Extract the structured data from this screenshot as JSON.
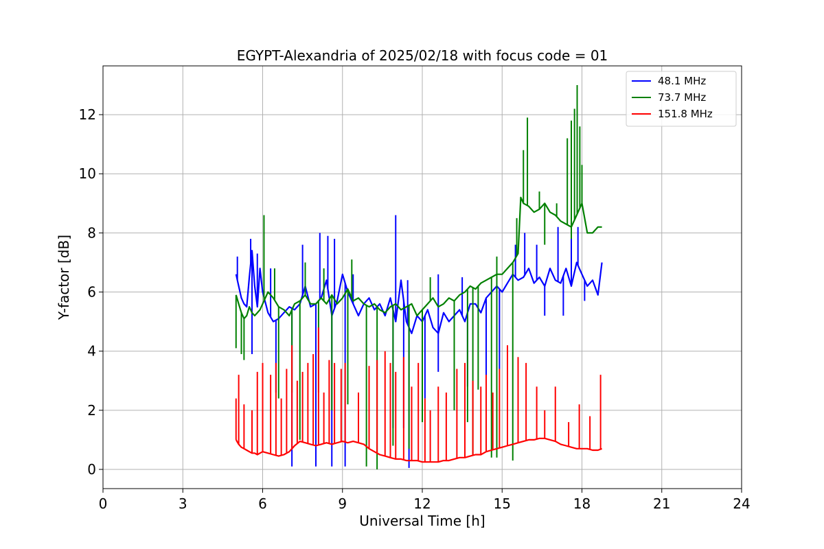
{
  "chart_data": {
    "type": "line",
    "title": "EGYPT-Alexandria of 2025/02/18 with focus code = 01",
    "xlabel": "Universal Time [h]",
    "ylabel": "Y-factor [dB]",
    "xlim": [
      0,
      24
    ],
    "ylim": [
      -0.65,
      13.65
    ],
    "xticks": [
      0,
      3,
      6,
      9,
      12,
      15,
      18,
      21,
      24
    ],
    "yticks": [
      0,
      2,
      4,
      6,
      8,
      10,
      12
    ],
    "grid": true,
    "legend_position": "top-right",
    "series": [
      {
        "name": " 48.1 MHz",
        "color": "#0000ff",
        "x": [
          5.0,
          5.1,
          5.2,
          5.3,
          5.4,
          5.5,
          5.6,
          5.7,
          5.8,
          5.9,
          6.0,
          6.2,
          6.4,
          6.6,
          6.8,
          7.0,
          7.2,
          7.4,
          7.6,
          7.8,
          8.0,
          8.2,
          8.4,
          8.6,
          8.8,
          9.0,
          9.2,
          9.4,
          9.6,
          9.8,
          10.0,
          10.2,
          10.4,
          10.6,
          10.8,
          11.0,
          11.2,
          11.4,
          11.6,
          11.8,
          12.0,
          12.2,
          12.4,
          12.6,
          12.8,
          13.0,
          13.2,
          13.4,
          13.6,
          13.8,
          14.0,
          14.2,
          14.4,
          14.6,
          14.8,
          15.0,
          15.2,
          15.4,
          15.6,
          15.8,
          16.0,
          16.2,
          16.4,
          16.6,
          16.8,
          17.0,
          17.2,
          17.4,
          17.6,
          17.8,
          18.0,
          18.2,
          18.4,
          18.6,
          18.75
        ],
        "y": [
          6.6,
          6.2,
          5.8,
          5.6,
          5.5,
          6.5,
          7.4,
          6.2,
          5.5,
          6.8,
          6.0,
          5.3,
          5.0,
          5.1,
          5.3,
          5.5,
          5.4,
          5.6,
          6.2,
          5.5,
          5.6,
          5.8,
          6.4,
          5.2,
          5.7,
          6.6,
          6.0,
          5.6,
          5.2,
          5.6,
          5.8,
          5.4,
          5.6,
          5.2,
          5.8,
          5.0,
          6.4,
          5.0,
          4.6,
          5.2,
          5.0,
          5.4,
          4.8,
          4.6,
          5.3,
          5.0,
          5.2,
          5.4,
          5.0,
          5.6,
          5.6,
          5.3,
          5.8,
          6.0,
          6.2,
          6.0,
          6.3,
          6.6,
          6.4,
          6.5,
          6.8,
          6.3,
          6.5,
          6.2,
          6.8,
          6.4,
          6.3,
          6.8,
          6.2,
          7.0,
          6.6,
          6.2,
          6.4,
          5.9,
          7.0
        ],
        "spikes": [
          {
            "x": 5.05,
            "y": 7.2
          },
          {
            "x": 5.55,
            "y": 7.8
          },
          {
            "x": 5.8,
            "y": 7.3
          },
          {
            "x": 6.3,
            "y": 6.8
          },
          {
            "x": 7.5,
            "y": 7.6
          },
          {
            "x": 8.15,
            "y": 8.0
          },
          {
            "x": 8.45,
            "y": 7.9
          },
          {
            "x": 8.7,
            "y": 7.8
          },
          {
            "x": 9.4,
            "y": 6.6
          },
          {
            "x": 11.0,
            "y": 8.6
          },
          {
            "x": 11.45,
            "y": 6.4
          },
          {
            "x": 12.6,
            "y": 6.6
          },
          {
            "x": 13.5,
            "y": 6.5
          },
          {
            "x": 15.5,
            "y": 7.6
          },
          {
            "x": 15.85,
            "y": 8.0
          },
          {
            "x": 16.3,
            "y": 7.6
          },
          {
            "x": 17.1,
            "y": 8.2
          },
          {
            "x": 17.6,
            "y": 7.8
          },
          {
            "x": 17.85,
            "y": 8.2
          }
        ],
        "dips": [
          {
            "x": 5.6,
            "y": 3.9
          },
          {
            "x": 6.5,
            "y": 2.6
          },
          {
            "x": 7.1,
            "y": 0.1
          },
          {
            "x": 8.0,
            "y": 0.1
          },
          {
            "x": 8.6,
            "y": 0.1
          },
          {
            "x": 9.1,
            "y": 0.1
          },
          {
            "x": 10.9,
            "y": 1.4
          },
          {
            "x": 11.3,
            "y": 1.4
          },
          {
            "x": 11.5,
            "y": 0.05
          },
          {
            "x": 12.1,
            "y": 2.4
          },
          {
            "x": 12.6,
            "y": 3.3
          },
          {
            "x": 13.7,
            "y": 2.8
          },
          {
            "x": 14.4,
            "y": 1.4
          },
          {
            "x": 14.9,
            "y": 3.4
          },
          {
            "x": 16.6,
            "y": 5.2
          },
          {
            "x": 17.3,
            "y": 5.2
          },
          {
            "x": 18.1,
            "y": 5.7
          }
        ]
      },
      {
        "name": " 73.7 MHz",
        "color": "#008000",
        "x": [
          5.0,
          5.1,
          5.2,
          5.3,
          5.4,
          5.5,
          5.6,
          5.7,
          5.8,
          5.9,
          6.0,
          6.2,
          6.4,
          6.6,
          6.8,
          7.0,
          7.2,
          7.4,
          7.6,
          7.8,
          8.0,
          8.2,
          8.4,
          8.6,
          8.8,
          9.0,
          9.2,
          9.4,
          9.6,
          9.8,
          10.0,
          10.2,
          10.4,
          10.6,
          10.8,
          11.0,
          11.2,
          11.4,
          11.6,
          11.8,
          12.0,
          12.2,
          12.4,
          12.6,
          12.8,
          13.0,
          13.2,
          13.4,
          13.6,
          13.8,
          14.0,
          14.2,
          14.4,
          14.6,
          14.8,
          15.0,
          15.2,
          15.4,
          15.6,
          15.7,
          15.8,
          16.0,
          16.2,
          16.4,
          16.6,
          16.8,
          17.0,
          17.2,
          17.4,
          17.6,
          17.8,
          18.0,
          18.2,
          18.4,
          18.6,
          18.75
        ],
        "y": [
          5.9,
          5.6,
          5.3,
          5.1,
          5.2,
          5.5,
          5.3,
          5.2,
          5.3,
          5.4,
          5.6,
          6.0,
          5.8,
          5.5,
          5.4,
          5.2,
          5.6,
          5.7,
          5.9,
          5.6,
          5.6,
          5.8,
          5.6,
          5.9,
          5.6,
          5.8,
          6.1,
          5.7,
          5.8,
          5.6,
          5.5,
          5.6,
          5.4,
          5.3,
          5.5,
          5.6,
          5.4,
          5.5,
          5.6,
          5.2,
          5.4,
          5.6,
          5.8,
          5.5,
          5.6,
          5.8,
          5.7,
          5.9,
          6.0,
          6.2,
          6.1,
          6.3,
          6.4,
          6.5,
          6.6,
          6.6,
          6.8,
          7.0,
          7.3,
          9.2,
          9.0,
          8.9,
          8.7,
          8.8,
          9.0,
          8.7,
          8.6,
          8.4,
          8.3,
          8.2,
          8.6,
          9.0,
          8.0,
          8.0,
          8.2,
          8.2
        ],
        "spikes": [
          {
            "x": 6.05,
            "y": 8.6
          },
          {
            "x": 6.45,
            "y": 6.8
          },
          {
            "x": 7.6,
            "y": 7.0
          },
          {
            "x": 8.3,
            "y": 6.8
          },
          {
            "x": 9.35,
            "y": 7.1
          },
          {
            "x": 12.3,
            "y": 6.5
          },
          {
            "x": 14.8,
            "y": 7.2
          },
          {
            "x": 15.55,
            "y": 8.5
          },
          {
            "x": 15.8,
            "y": 10.8
          },
          {
            "x": 15.95,
            "y": 11.9
          },
          {
            "x": 16.4,
            "y": 9.4
          },
          {
            "x": 17.05,
            "y": 9.0
          },
          {
            "x": 17.45,
            "y": 11.2
          },
          {
            "x": 17.6,
            "y": 11.8
          },
          {
            "x": 17.72,
            "y": 12.2
          },
          {
            "x": 17.82,
            "y": 13.0
          },
          {
            "x": 17.92,
            "y": 11.6
          },
          {
            "x": 18.0,
            "y": 10.3
          }
        ],
        "dips": [
          {
            "x": 5.0,
            "y": 4.1
          },
          {
            "x": 5.2,
            "y": 3.9
          },
          {
            "x": 5.3,
            "y": 3.7
          },
          {
            "x": 6.6,
            "y": 2.4
          },
          {
            "x": 7.1,
            "y": 2.6
          },
          {
            "x": 7.4,
            "y": 1.0
          },
          {
            "x": 8.1,
            "y": 2.6
          },
          {
            "x": 8.6,
            "y": 2.0
          },
          {
            "x": 9.2,
            "y": 2.2
          },
          {
            "x": 9.9,
            "y": 0.1
          },
          {
            "x": 10.3,
            "y": 0.0
          },
          {
            "x": 10.9,
            "y": 0.8
          },
          {
            "x": 11.5,
            "y": 0.7
          },
          {
            "x": 12.0,
            "y": 1.6
          },
          {
            "x": 13.2,
            "y": 2.0
          },
          {
            "x": 13.7,
            "y": 1.6
          },
          {
            "x": 13.9,
            "y": 0.5
          },
          {
            "x": 14.1,
            "y": 2.7
          },
          {
            "x": 14.6,
            "y": 0.4
          },
          {
            "x": 14.8,
            "y": 0.4
          },
          {
            "x": 15.4,
            "y": 0.3
          },
          {
            "x": 16.6,
            "y": 7.6
          },
          {
            "x": 17.6,
            "y": 7.8
          }
        ]
      },
      {
        "name": " 151.8 MHz",
        "color": "#ff0000",
        "x": [
          5.0,
          5.1,
          5.2,
          5.3,
          5.4,
          5.5,
          5.6,
          5.7,
          5.8,
          5.9,
          6.0,
          6.2,
          6.4,
          6.6,
          6.8,
          7.0,
          7.2,
          7.4,
          7.6,
          7.8,
          8.0,
          8.2,
          8.4,
          8.6,
          8.8,
          9.0,
          9.2,
          9.4,
          9.6,
          9.8,
          10.0,
          10.2,
          10.4,
          10.6,
          10.8,
          11.0,
          11.2,
          11.4,
          11.6,
          11.8,
          12.0,
          12.2,
          12.4,
          12.6,
          12.8,
          13.0,
          13.2,
          13.4,
          13.6,
          13.8,
          14.0,
          14.2,
          14.4,
          14.6,
          14.8,
          15.0,
          15.2,
          15.4,
          15.6,
          15.8,
          16.0,
          16.2,
          16.4,
          16.6,
          16.8,
          17.0,
          17.2,
          17.4,
          17.6,
          17.8,
          18.0,
          18.2,
          18.4,
          18.6,
          18.75
        ],
        "y": [
          1.0,
          0.85,
          0.75,
          0.7,
          0.65,
          0.6,
          0.55,
          0.55,
          0.5,
          0.55,
          0.6,
          0.55,
          0.5,
          0.45,
          0.5,
          0.6,
          0.8,
          0.95,
          0.9,
          0.85,
          0.8,
          0.85,
          0.9,
          0.85,
          0.9,
          0.95,
          0.9,
          0.95,
          0.9,
          0.85,
          0.7,
          0.6,
          0.5,
          0.45,
          0.4,
          0.35,
          0.35,
          0.3,
          0.3,
          0.3,
          0.25,
          0.25,
          0.25,
          0.25,
          0.3,
          0.3,
          0.35,
          0.4,
          0.4,
          0.45,
          0.5,
          0.5,
          0.6,
          0.65,
          0.7,
          0.75,
          0.8,
          0.85,
          0.9,
          0.95,
          1.0,
          1.0,
          1.05,
          1.05,
          1.0,
          0.95,
          0.85,
          0.8,
          0.75,
          0.7,
          0.7,
          0.7,
          0.65,
          0.65,
          0.7
        ],
        "spikes": [
          {
            "x": 5.0,
            "y": 2.4
          },
          {
            "x": 5.1,
            "y": 3.2
          },
          {
            "x": 5.3,
            "y": 2.2
          },
          {
            "x": 5.6,
            "y": 2.0
          },
          {
            "x": 5.8,
            "y": 3.3
          },
          {
            "x": 6.0,
            "y": 3.6
          },
          {
            "x": 6.3,
            "y": 3.2
          },
          {
            "x": 6.5,
            "y": 3.6
          },
          {
            "x": 6.7,
            "y": 2.4
          },
          {
            "x": 6.9,
            "y": 3.4
          },
          {
            "x": 7.1,
            "y": 4.2
          },
          {
            "x": 7.3,
            "y": 3.0
          },
          {
            "x": 7.5,
            "y": 3.3
          },
          {
            "x": 7.7,
            "y": 3.6
          },
          {
            "x": 7.9,
            "y": 3.9
          },
          {
            "x": 8.1,
            "y": 4.8
          },
          {
            "x": 8.3,
            "y": 2.6
          },
          {
            "x": 8.5,
            "y": 3.7
          },
          {
            "x": 8.7,
            "y": 3.6
          },
          {
            "x": 8.95,
            "y": 3.4
          },
          {
            "x": 9.1,
            "y": 3.6
          },
          {
            "x": 9.6,
            "y": 2.6
          },
          {
            "x": 10.0,
            "y": 3.5
          },
          {
            "x": 10.3,
            "y": 3.7
          },
          {
            "x": 10.6,
            "y": 4.0
          },
          {
            "x": 10.8,
            "y": 3.6
          },
          {
            "x": 11.0,
            "y": 3.3
          },
          {
            "x": 11.3,
            "y": 3.8
          },
          {
            "x": 11.6,
            "y": 2.8
          },
          {
            "x": 11.85,
            "y": 3.6
          },
          {
            "x": 12.1,
            "y": 2.4
          },
          {
            "x": 12.3,
            "y": 2.0
          },
          {
            "x": 12.6,
            "y": 2.8
          },
          {
            "x": 12.9,
            "y": 2.6
          },
          {
            "x": 13.3,
            "y": 3.4
          },
          {
            "x": 13.6,
            "y": 3.6
          },
          {
            "x": 13.9,
            "y": 3.0
          },
          {
            "x": 14.2,
            "y": 2.8
          },
          {
            "x": 14.4,
            "y": 3.2
          },
          {
            "x": 14.65,
            "y": 2.6
          },
          {
            "x": 14.9,
            "y": 3.4
          },
          {
            "x": 15.2,
            "y": 4.2
          },
          {
            "x": 15.6,
            "y": 3.8
          },
          {
            "x": 15.9,
            "y": 3.6
          },
          {
            "x": 16.3,
            "y": 2.8
          },
          {
            "x": 16.6,
            "y": 2.0
          },
          {
            "x": 17.0,
            "y": 2.8
          },
          {
            "x": 17.5,
            "y": 1.6
          },
          {
            "x": 17.9,
            "y": 2.2
          },
          {
            "x": 18.3,
            "y": 1.8
          },
          {
            "x": 18.7,
            "y": 3.2
          }
        ],
        "dips": []
      }
    ]
  }
}
